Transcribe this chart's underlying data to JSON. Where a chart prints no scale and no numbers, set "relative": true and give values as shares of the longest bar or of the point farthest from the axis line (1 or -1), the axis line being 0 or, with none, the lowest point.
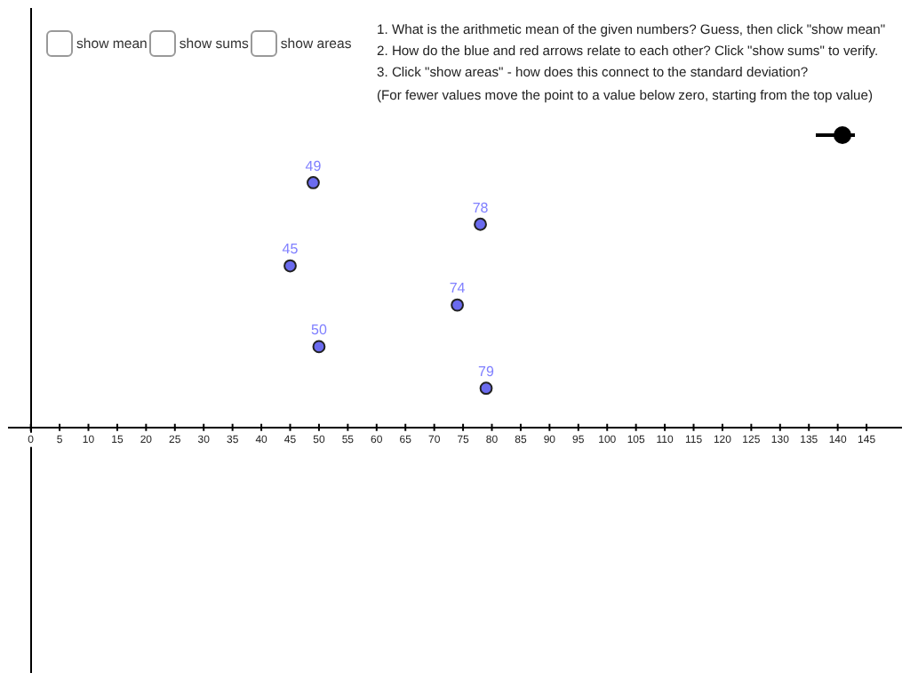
{
  "chart_data": {
    "type": "scatter",
    "relative": true,
    "x": [
      49,
      78,
      45,
      74,
      50,
      79
    ],
    "values": [
      1,
      0.83,
      0.66,
      0.5,
      0.33,
      0.16
    ],
    "color": "#6b6bef",
    "marker": "circle",
    "xlim": [
      -3.8,
      151
    ],
    "xticks": [
      0,
      5,
      10,
      15,
      20,
      25,
      30,
      35,
      40,
      45,
      50,
      55,
      60,
      65,
      70,
      75,
      80,
      85,
      90,
      95,
      100,
      105,
      110,
      115,
      120,
      125,
      130,
      135,
      140,
      145
    ],
    "legend": false,
    "annotations": [
      "show mean",
      "show sums",
      "show areas",
      "1. What is the arithmetic mean of the given numbers? Guess, then click \"show mean\"",
      "2. How do the blue and red arrows relate to each other? Click \"show sums\" to verify.",
      "3. Click \"show areas\" - how does this connect to the standard deviation?",
      "(For fewer values move the point to a value below zero, starting from the top value)",
      {
        "text": "49",
        "x": 49,
        "y": 1
      },
      {
        "text": "78",
        "x": 78,
        "y": 0.83
      },
      {
        "text": "45",
        "x": 45,
        "y": 0.66
      },
      {
        "text": "74",
        "x": 74,
        "y": 0.5
      },
      {
        "text": "50",
        "x": 50,
        "y": 0.33
      },
      {
        "text": "79",
        "x": 79,
        "y": 0.16
      }
    ]
  }
}
